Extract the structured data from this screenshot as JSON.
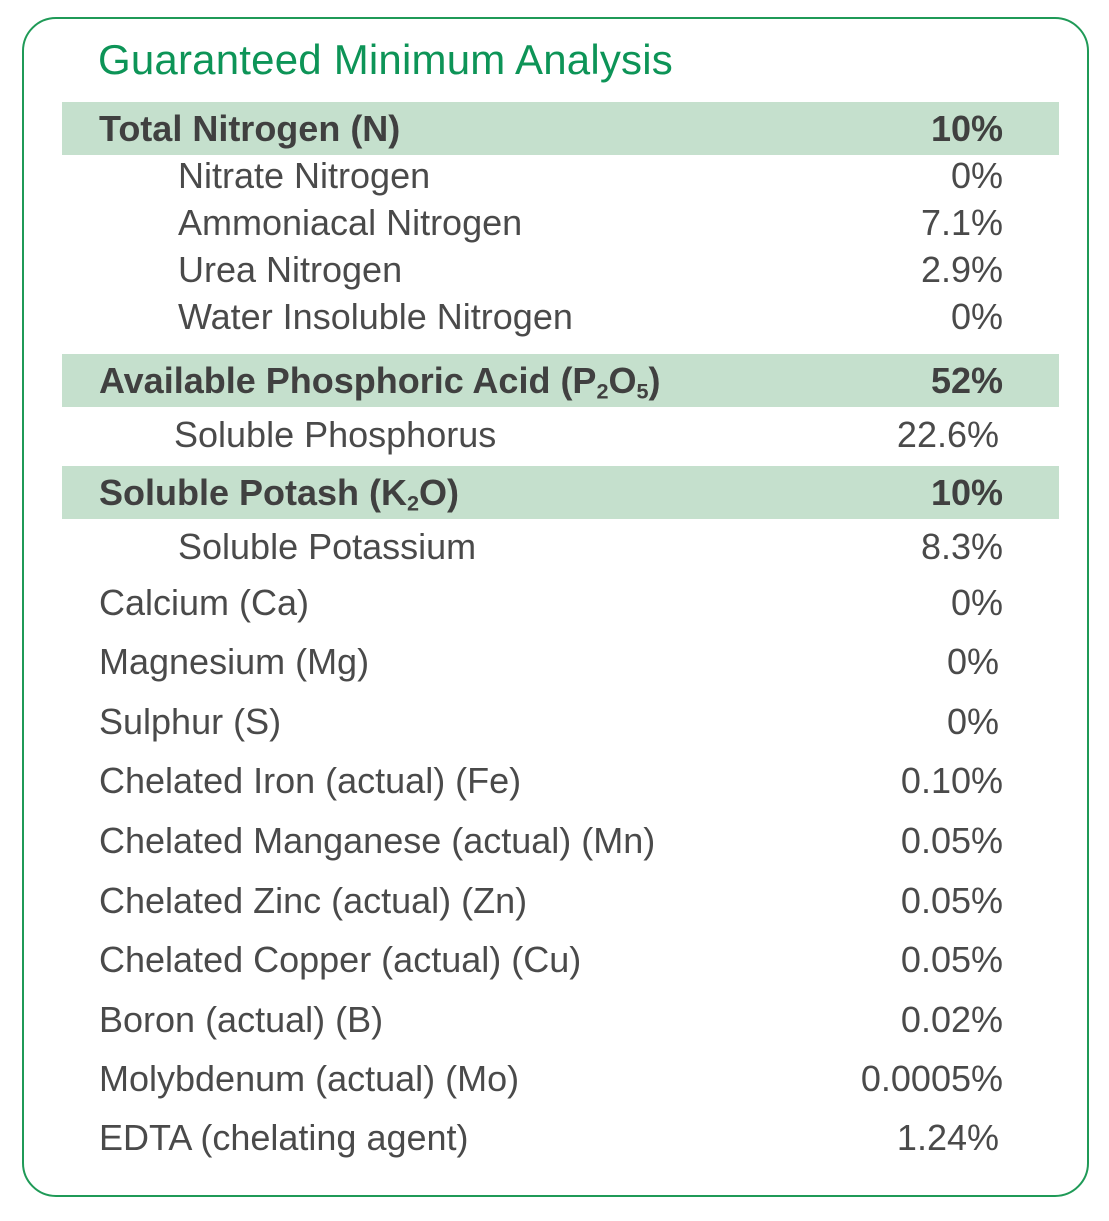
{
  "title": "Guaranteed Minimum Analysis",
  "rows": [
    {
      "label": "Total Nitrogen (N)",
      "value": "10%"
    },
    {
      "label": "Nitrate Nitrogen",
      "value": "0%"
    },
    {
      "label": "Ammoniacal Nitrogen",
      "value": "7.1%"
    },
    {
      "label": "Urea Nitrogen",
      "value": "2.9%"
    },
    {
      "label": "Water Insoluble Nitrogen",
      "value": "0%"
    },
    {
      "label_pre": "Available Phosphoric Acid (P",
      "sub1": "2",
      "label_mid": "O",
      "sub2": "5",
      "label_post": ")",
      "value": "52%"
    },
    {
      "label": "Soluble Phosphorus",
      "value": "22.6%"
    },
    {
      "label_pre": "Soluble Potash (K",
      "sub1": "2",
      "label_post": "O)",
      "value": "10%"
    },
    {
      "label": "Soluble Potassium",
      "value": "8.3%"
    },
    {
      "label": "Calcium (Ca)",
      "value": "0%"
    },
    {
      "label": "Magnesium (Mg)",
      "value": "0%"
    },
    {
      "label": "Sulphur (S)",
      "value": "0%"
    },
    {
      "label": "Chelated Iron (actual) (Fe)",
      "value": "0.10%"
    },
    {
      "label": "Chelated Manganese (actual) (Mn)",
      "value": "0.05%"
    },
    {
      "label": "Chelated Zinc (actual) (Zn)",
      "value": "0.05%"
    },
    {
      "label": "Chelated Copper (actual) (Cu)",
      "value": "0.05%"
    },
    {
      "label": "Boron (actual) (B)",
      "value": "0.02%"
    },
    {
      "label": "Molybdenum (actual) (Mo)",
      "value": "0.0005%"
    },
    {
      "label": "EDTA (chelating agent)",
      "value": "1.24%"
    }
  ],
  "colors": {
    "accent": "#1f9a57",
    "title": "#0d9457",
    "band": "#c5e0cd",
    "text": "#4a4a4a"
  }
}
